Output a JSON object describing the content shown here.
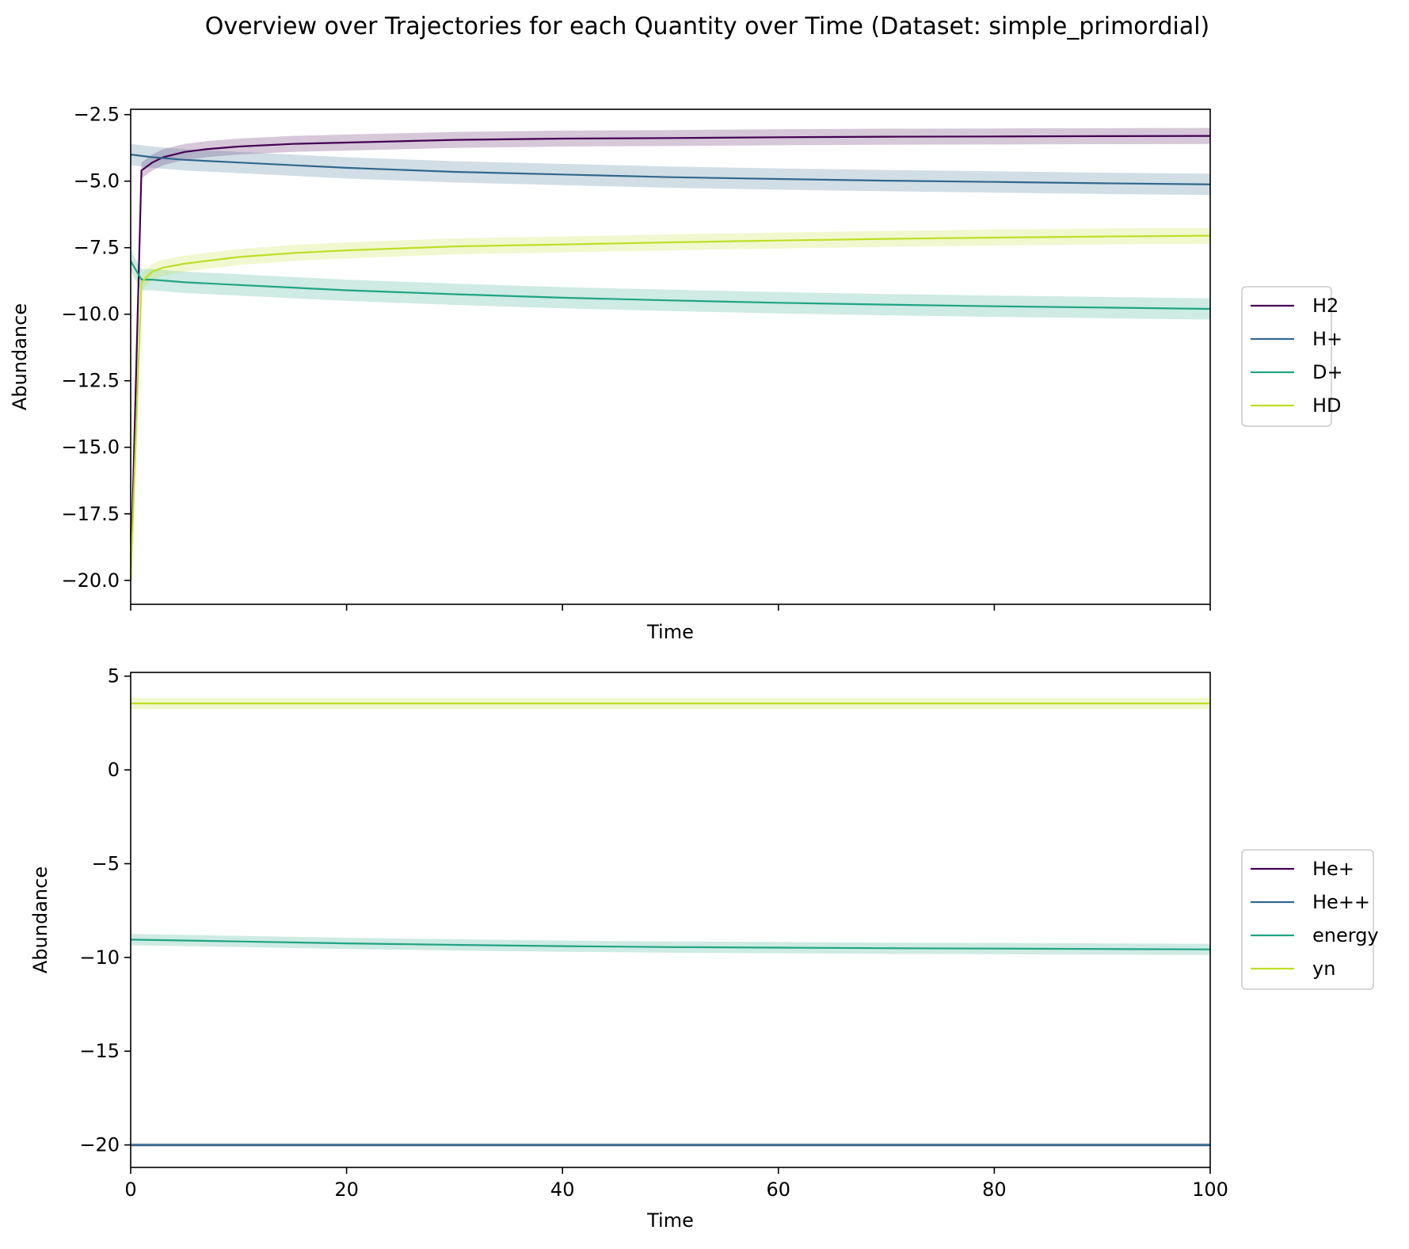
{
  "title": "Overview over Trajectories for each Quantity over Time (Dataset: simple_primordial)",
  "colors": {
    "H2": "#440154",
    "H+": "#31688e",
    "D+": "#21a484",
    "HD": "#bddf26",
    "He+": "#440154",
    "He++": "#31688e",
    "energy": "#21a484",
    "yn": "#bddf26"
  },
  "chart_data": [
    {
      "type": "line",
      "xlabel": "Time",
      "ylabel": "Abundance",
      "xlim": [
        0,
        100
      ],
      "ylim": [
        -20.9,
        -2.3
      ],
      "xticks": [
        0,
        20,
        40,
        60,
        80,
        100
      ],
      "xtick_labels_shown": false,
      "yticks": [
        -2.5,
        -5.0,
        -7.5,
        -10.0,
        -12.5,
        -15.0,
        -17.5,
        -20.0
      ],
      "ytick_labels": [
        "−2.5",
        "−5.0",
        "−7.5",
        "−10.0",
        "−12.5",
        "−15.0",
        "−17.5",
        "−20.0"
      ],
      "legend_position": "outside-right",
      "series": [
        {
          "name": "H2",
          "x": [
            0,
            1,
            2,
            3,
            5,
            7,
            10,
            15,
            20,
            30,
            40,
            50,
            60,
            70,
            80,
            90,
            100
          ],
          "y": [
            -20.0,
            -4.6,
            -4.3,
            -4.1,
            -3.9,
            -3.8,
            -3.7,
            -3.6,
            -3.55,
            -3.45,
            -3.4,
            -3.38,
            -3.35,
            -3.33,
            -3.32,
            -3.31,
            -3.3
          ],
          "band": 0.3
        },
        {
          "name": "H+",
          "x": [
            0,
            2,
            5,
            10,
            20,
            30,
            40,
            50,
            60,
            70,
            80,
            90,
            100
          ],
          "y": [
            -4.0,
            -4.1,
            -4.2,
            -4.3,
            -4.5,
            -4.65,
            -4.75,
            -4.85,
            -4.92,
            -4.98,
            -5.03,
            -5.08,
            -5.12
          ],
          "band": 0.4
        },
        {
          "name": "D+",
          "x": [
            0,
            1,
            2,
            5,
            10,
            20,
            30,
            40,
            50,
            60,
            70,
            80,
            90,
            100
          ],
          "y": [
            -8.0,
            -8.7,
            -8.7,
            -8.8,
            -8.9,
            -9.1,
            -9.25,
            -9.38,
            -9.48,
            -9.57,
            -9.64,
            -9.7,
            -9.75,
            -9.8
          ],
          "band": 0.4
        },
        {
          "name": "HD",
          "x": [
            0,
            1,
            2,
            3,
            5,
            7,
            10,
            15,
            20,
            30,
            40,
            50,
            60,
            70,
            80,
            90,
            100
          ],
          "y": [
            -20.0,
            -8.8,
            -8.4,
            -8.25,
            -8.1,
            -8.0,
            -7.85,
            -7.7,
            -7.6,
            -7.45,
            -7.38,
            -7.3,
            -7.23,
            -7.17,
            -7.12,
            -7.08,
            -7.05
          ],
          "band": 0.3
        }
      ]
    },
    {
      "type": "line",
      "xlabel": "Time",
      "ylabel": "Abundance",
      "xlim": [
        0,
        100
      ],
      "ylim": [
        -21.2,
        5.2
      ],
      "xticks": [
        0,
        20,
        40,
        60,
        80,
        100
      ],
      "xtick_labels": [
        "0",
        "20",
        "40",
        "60",
        "80",
        "100"
      ],
      "yticks": [
        5,
        0,
        -5,
        -10,
        -15,
        -20
      ],
      "ytick_labels": [
        "5",
        "0",
        "−5",
        "−10",
        "−15",
        "−20"
      ],
      "legend_position": "outside-right",
      "series": [
        {
          "name": "He+",
          "x": [
            0,
            100
          ],
          "y": [
            -20.0,
            -20.0
          ],
          "band": 0.08
        },
        {
          "name": "He++",
          "x": [
            0,
            100
          ],
          "y": [
            -20.0,
            -20.0
          ],
          "band": 0.08
        },
        {
          "name": "energy",
          "x": [
            0,
            5,
            10,
            20,
            30,
            40,
            50,
            60,
            70,
            80,
            90,
            100
          ],
          "y": [
            -9.05,
            -9.1,
            -9.15,
            -9.25,
            -9.33,
            -9.4,
            -9.45,
            -9.48,
            -9.51,
            -9.53,
            -9.55,
            -9.57
          ],
          "band": 0.3
        },
        {
          "name": "yn",
          "x": [
            0,
            100
          ],
          "y": [
            3.55,
            3.55
          ],
          "band": 0.3
        }
      ]
    }
  ]
}
